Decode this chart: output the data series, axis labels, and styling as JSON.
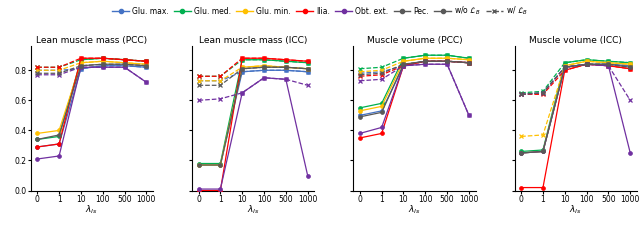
{
  "x_labels": [
    "0",
    "1",
    "10",
    "100",
    "500",
    "1000"
  ],
  "subplot_titles": [
    "Lean muscle mass (PCC)",
    "Lean muscle mass (ICC)",
    "Muscle volume (PCC)",
    "Muscle volume (ICC)"
  ],
  "xlabel": "$\\lambda_{ls}$",
  "colors": {
    "glu_max": "#4472C4",
    "glu_med": "#00B050",
    "glu_min": "#FFC000",
    "ilia": "#FF0000",
    "obt_ext": "#7030A0",
    "pec": "#595959"
  },
  "legend_labels": [
    "Glu. max.",
    "Glu. med.",
    "Glu. min.",
    "Ilia.",
    "Obt. ext.",
    "Pec.",
    "w/o $\\mathcal{L}_B$",
    "w/ $\\mathcal{L}_B$"
  ],
  "data": {
    "lmm_pcc": {
      "wo": {
        "glu_max": [
          0.29,
          0.31,
          0.81,
          0.83,
          0.83,
          0.82
        ],
        "glu_med": [
          0.34,
          0.36,
          0.87,
          0.88,
          0.87,
          0.86
        ],
        "glu_min": [
          0.38,
          0.4,
          0.85,
          0.86,
          0.85,
          0.84
        ],
        "ilia": [
          0.29,
          0.31,
          0.88,
          0.88,
          0.87,
          0.86
        ],
        "obt_ext": [
          0.21,
          0.23,
          0.82,
          0.82,
          0.82,
          0.72
        ],
        "pec": [
          0.34,
          0.37,
          0.83,
          0.84,
          0.84,
          0.83
        ]
      },
      "w": {
        "glu_max": [
          0.8,
          0.8,
          0.81,
          0.83,
          0.83,
          0.82
        ],
        "glu_med": [
          0.82,
          0.82,
          0.87,
          0.88,
          0.87,
          0.86
        ],
        "glu_min": [
          0.8,
          0.8,
          0.85,
          0.86,
          0.85,
          0.84
        ],
        "ilia": [
          0.82,
          0.82,
          0.88,
          0.88,
          0.87,
          0.86
        ],
        "obt_ext": [
          0.77,
          0.77,
          0.82,
          0.82,
          0.82,
          0.72
        ],
        "pec": [
          0.78,
          0.78,
          0.83,
          0.84,
          0.84,
          0.83
        ]
      }
    },
    "lmm_icc": {
      "wo": {
        "glu_max": [
          0.17,
          0.17,
          0.79,
          0.8,
          0.8,
          0.79
        ],
        "glu_med": [
          0.18,
          0.18,
          0.87,
          0.87,
          0.86,
          0.85
        ],
        "glu_min": [
          0.17,
          0.17,
          0.82,
          0.83,
          0.82,
          0.81
        ],
        "ilia": [
          0.0,
          0.0,
          0.88,
          0.88,
          0.87,
          0.86
        ],
        "obt_ext": [
          0.01,
          0.01,
          0.65,
          0.75,
          0.74,
          0.1
        ],
        "pec": [
          0.17,
          0.17,
          0.81,
          0.82,
          0.82,
          0.81
        ]
      },
      "w": {
        "glu_max": [
          0.73,
          0.73,
          0.79,
          0.8,
          0.8,
          0.79
        ],
        "glu_med": [
          0.76,
          0.76,
          0.87,
          0.87,
          0.86,
          0.85
        ],
        "glu_min": [
          0.73,
          0.73,
          0.82,
          0.83,
          0.82,
          0.81
        ],
        "ilia": [
          0.76,
          0.76,
          0.88,
          0.88,
          0.87,
          0.86
        ],
        "obt_ext": [
          0.6,
          0.61,
          0.65,
          0.75,
          0.74,
          0.7
        ],
        "pec": [
          0.7,
          0.7,
          0.81,
          0.82,
          0.82,
          0.81
        ]
      }
    },
    "mv_pcc": {
      "wo": {
        "glu_max": [
          0.5,
          0.53,
          0.83,
          0.86,
          0.86,
          0.85
        ],
        "glu_med": [
          0.55,
          0.58,
          0.88,
          0.9,
          0.9,
          0.88
        ],
        "glu_min": [
          0.53,
          0.56,
          0.86,
          0.88,
          0.88,
          0.87
        ],
        "ilia": [
          0.35,
          0.38,
          0.83,
          0.86,
          0.86,
          0.85
        ],
        "obt_ext": [
          0.38,
          0.42,
          0.83,
          0.84,
          0.84,
          0.5
        ],
        "pec": [
          0.49,
          0.52,
          0.84,
          0.86,
          0.86,
          0.85
        ]
      },
      "w": {
        "glu_max": [
          0.78,
          0.79,
          0.83,
          0.86,
          0.86,
          0.85
        ],
        "glu_med": [
          0.81,
          0.82,
          0.88,
          0.9,
          0.9,
          0.88
        ],
        "glu_min": [
          0.79,
          0.8,
          0.86,
          0.88,
          0.88,
          0.87
        ],
        "ilia": [
          0.76,
          0.77,
          0.83,
          0.86,
          0.86,
          0.85
        ],
        "obt_ext": [
          0.73,
          0.74,
          0.83,
          0.84,
          0.84,
          0.5
        ],
        "pec": [
          0.77,
          0.78,
          0.84,
          0.86,
          0.86,
          0.85
        ]
      }
    },
    "mv_icc": {
      "wo": {
        "glu_max": [
          0.25,
          0.26,
          0.82,
          0.84,
          0.84,
          0.83
        ],
        "glu_med": [
          0.26,
          0.27,
          0.85,
          0.87,
          0.86,
          0.85
        ],
        "glu_min": [
          0.25,
          0.26,
          0.83,
          0.86,
          0.85,
          0.84
        ],
        "ilia": [
          0.02,
          0.02,
          0.8,
          0.84,
          0.83,
          0.81
        ],
        "obt_ext": [
          0.25,
          0.26,
          0.82,
          0.84,
          0.83,
          0.25
        ],
        "pec": [
          0.25,
          0.26,
          0.82,
          0.84,
          0.84,
          0.82
        ]
      },
      "w": {
        "glu_max": [
          0.64,
          0.65,
          0.82,
          0.84,
          0.84,
          0.83
        ],
        "glu_med": [
          0.65,
          0.66,
          0.85,
          0.87,
          0.86,
          0.85
        ],
        "glu_min": [
          0.36,
          0.37,
          0.83,
          0.86,
          0.85,
          0.84
        ],
        "ilia": [
          0.64,
          0.64,
          0.8,
          0.84,
          0.83,
          0.81
        ],
        "obt_ext": [
          0.64,
          0.65,
          0.82,
          0.84,
          0.83,
          0.6
        ],
        "pec": [
          0.64,
          0.65,
          0.82,
          0.84,
          0.84,
          0.82
        ]
      }
    }
  },
  "ylim": [
    0.0,
    0.96
  ],
  "yticks": [
    0.0,
    0.2,
    0.4,
    0.6,
    0.8
  ],
  "figsize": [
    6.4,
    2.31
  ],
  "dpi": 100
}
